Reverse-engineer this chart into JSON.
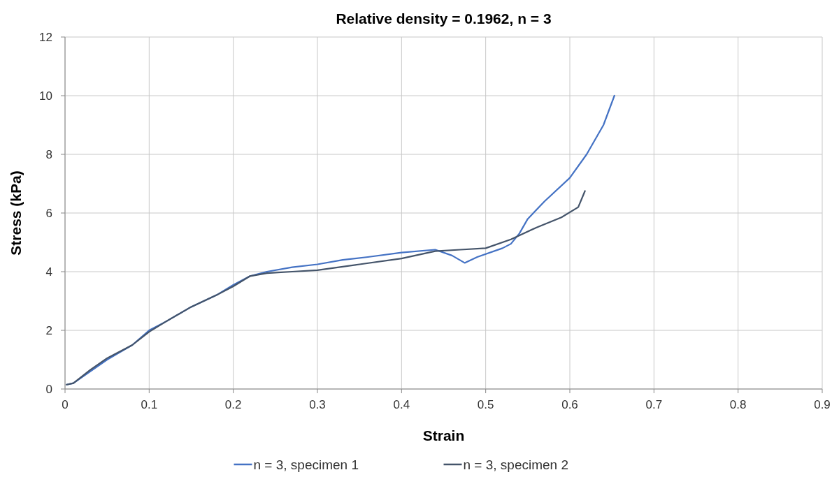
{
  "chart_data": {
    "type": "line",
    "title": "Relative density = 0.1962, n = 3",
    "xlabel": "Strain",
    "ylabel": "Stress (kPa)",
    "xlim": [
      0,
      0.9
    ],
    "xticks": [
      0,
      0.1,
      0.2,
      0.3,
      0.4,
      0.5,
      0.6,
      0.7,
      0.8,
      0.9
    ],
    "ylim": [
      0,
      12
    ],
    "yticks": [
      0,
      2,
      4,
      6,
      8,
      10,
      12
    ],
    "grid": true,
    "legend": "bottom",
    "marker": "none",
    "line_style": "solid",
    "series": [
      {
        "name": "n = 3, specimen 1",
        "color": "#4472c4",
        "x": [
          0.002,
          0.01,
          0.03,
          0.05,
          0.08,
          0.1,
          0.12,
          0.15,
          0.18,
          0.2,
          0.22,
          0.24,
          0.27,
          0.3,
          0.33,
          0.36,
          0.4,
          0.44,
          0.46,
          0.475,
          0.49,
          0.52,
          0.53,
          0.54,
          0.55,
          0.57,
          0.6,
          0.62,
          0.64,
          0.653
        ],
        "values": [
          0.15,
          0.2,
          0.6,
          1.0,
          1.5,
          2.0,
          2.3,
          2.8,
          3.2,
          3.55,
          3.85,
          4.0,
          4.15,
          4.25,
          4.4,
          4.5,
          4.65,
          4.75,
          4.55,
          4.3,
          4.5,
          4.8,
          4.95,
          5.3,
          5.8,
          6.4,
          7.2,
          8.0,
          9.0,
          10.0
        ]
      },
      {
        "name": "n = 3, specimen 2",
        "color": "#44546a",
        "x": [
          0.002,
          0.01,
          0.03,
          0.05,
          0.08,
          0.1,
          0.12,
          0.15,
          0.18,
          0.2,
          0.22,
          0.24,
          0.27,
          0.3,
          0.35,
          0.4,
          0.44,
          0.47,
          0.5,
          0.53,
          0.56,
          0.59,
          0.61,
          0.618
        ],
        "values": [
          0.15,
          0.2,
          0.65,
          1.05,
          1.5,
          1.95,
          2.3,
          2.8,
          3.2,
          3.5,
          3.85,
          3.95,
          4.0,
          4.05,
          4.25,
          4.45,
          4.7,
          4.75,
          4.8,
          5.1,
          5.5,
          5.85,
          6.2,
          6.75
        ]
      }
    ]
  }
}
